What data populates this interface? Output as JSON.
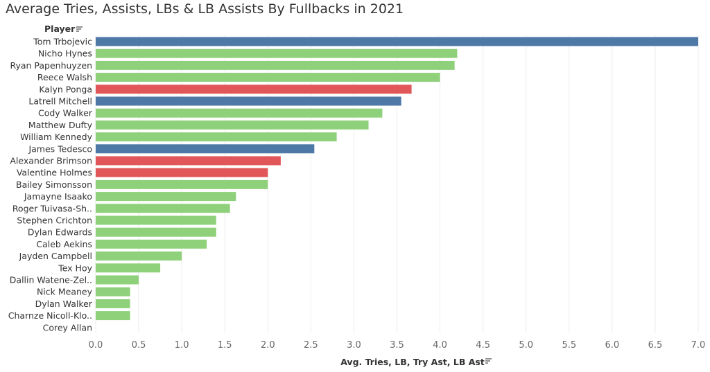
{
  "chart_data": {
    "type": "bar",
    "orientation": "horizontal",
    "title": "Average Tries, Assists, LBs & LB Assists By Fullbacks in 2021",
    "row_header": "Player",
    "xlabel": "Avg. Tries, LB, Try Ast, LB Ast",
    "xlim": [
      0,
      7
    ],
    "x_ticks": [
      "0.0",
      "0.5",
      "1.0",
      "1.5",
      "2.0",
      "2.5",
      "3.0",
      "3.5",
      "4.0",
      "4.5",
      "5.0",
      "5.5",
      "6.0",
      "6.5",
      "7.0"
    ],
    "grid": true,
    "categories": [
      "Tom Trbojevic",
      "Nicho Hynes",
      "Ryan Papenhuyzen",
      "Reece Walsh",
      "Kalyn Ponga",
      "Latrell Mitchell",
      "Cody Walker",
      "Matthew Dufty",
      "William Kennedy",
      "James Tedesco",
      "Alexander Brimson",
      "Valentine Holmes",
      "Bailey Simonsson",
      "Jamayne Isaako",
      "Roger Tuivasa-Sh..",
      "Stephen Crichton",
      "Dylan Edwards",
      "Caleb Aekins",
      "Jayden Campbell",
      "Tex Hoy",
      "Dallin Watene-Zel..",
      "Nick Meaney",
      "Dylan Walker",
      "Charnze Nicoll-Klo..",
      "Corey Allan"
    ],
    "values": [
      7.0,
      4.2,
      4.17,
      4.0,
      3.67,
      3.55,
      3.33,
      3.17,
      2.8,
      2.54,
      2.15,
      2.0,
      2.0,
      1.63,
      1.56,
      1.4,
      1.4,
      1.29,
      1.0,
      0.75,
      0.5,
      0.4,
      0.4,
      0.4,
      0.0
    ],
    "bar_colors": [
      "#4e79a7",
      "#8fd17b",
      "#8fd17b",
      "#8fd17b",
      "#e15759",
      "#4e79a7",
      "#8fd17b",
      "#8fd17b",
      "#8fd17b",
      "#4e79a7",
      "#e15759",
      "#e15759",
      "#8fd17b",
      "#8fd17b",
      "#8fd17b",
      "#8fd17b",
      "#8fd17b",
      "#8fd17b",
      "#8fd17b",
      "#8fd17b",
      "#8fd17b",
      "#8fd17b",
      "#8fd17b",
      "#8fd17b",
      "#8fd17b"
    ]
  }
}
